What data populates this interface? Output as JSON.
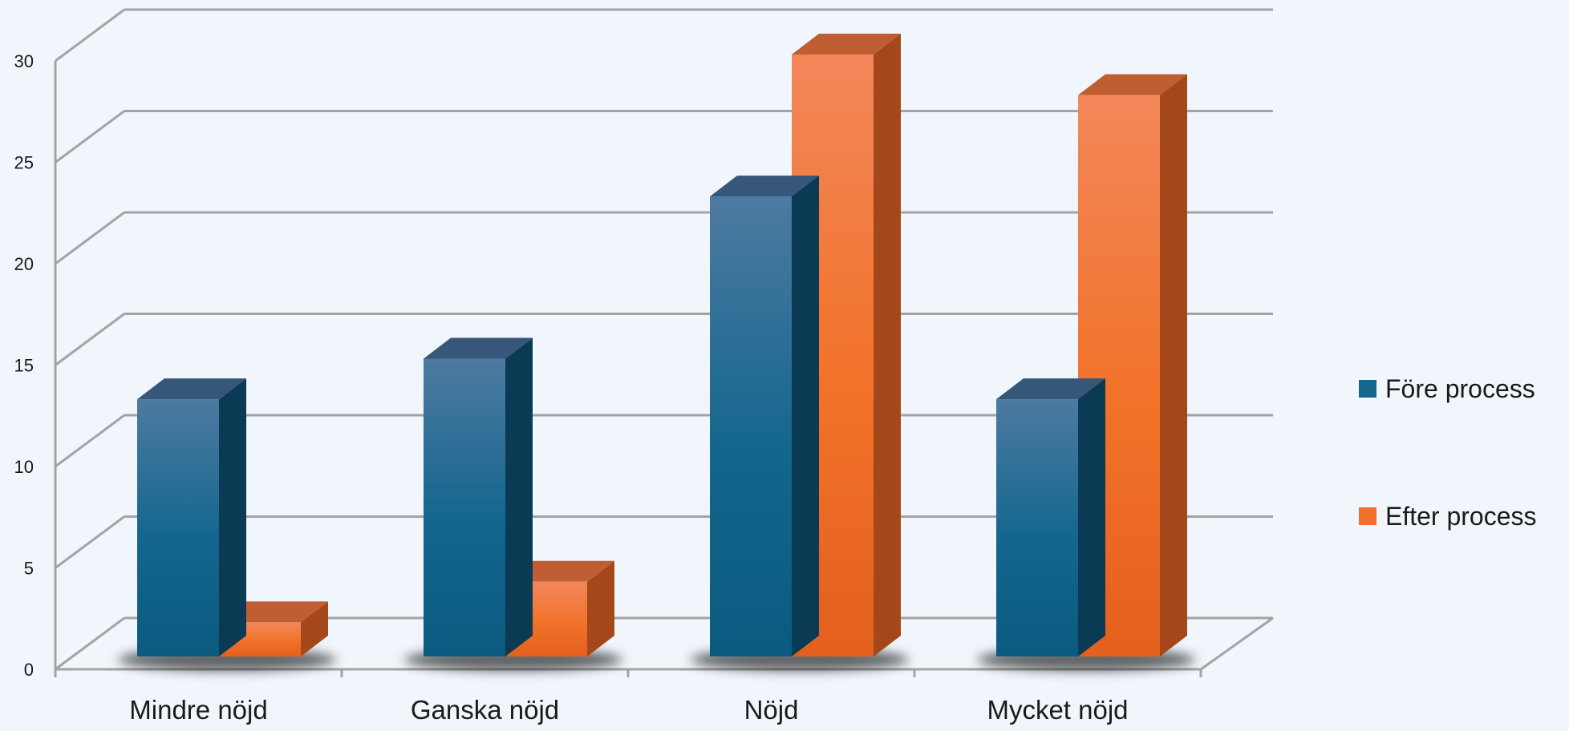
{
  "chart_data": {
    "type": "bar",
    "title": "",
    "xlabel": "",
    "ylabel": "",
    "categories": [
      "Mindre nöjd",
      "Ganska nöjd",
      "Nöjd",
      "Mycket nöjd"
    ],
    "series": [
      {
        "name": "Före process",
        "values": [
          13,
          15,
          23,
          13
        ],
        "color": "#14688f"
      },
      {
        "name": "Efter process",
        "values": [
          2,
          4,
          30,
          28
        ],
        "color": "#f26f2a"
      }
    ],
    "ylim": [
      0,
      30
    ],
    "yticks": [
      0,
      5,
      10,
      15,
      20,
      25,
      30
    ],
    "grid": true,
    "legend_position": "right",
    "style": "3d-clustered-column"
  }
}
